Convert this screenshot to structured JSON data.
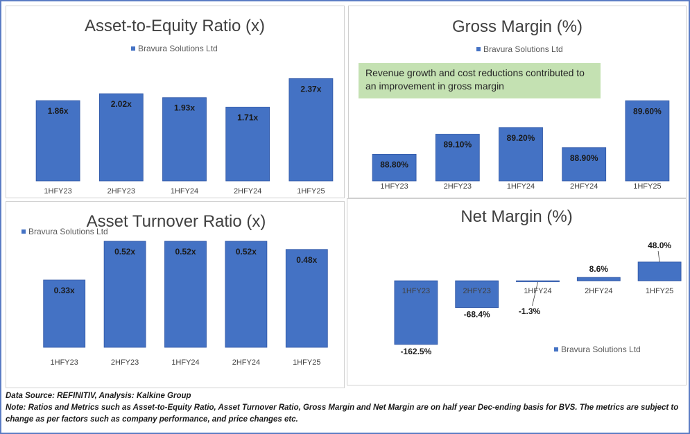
{
  "colors": {
    "bar": "#4472c4",
    "bar_edge": "#2f55a4",
    "callout_fill": "#c4e1b2",
    "frame": "#5b7cc4"
  },
  "legend_label": "Bravura Solutions Ltd",
  "chart_data": [
    {
      "type": "bar",
      "title": "Asset-to-Equity Ratio (x)",
      "categories": [
        "1HFY23",
        "2HFY23",
        "1HFY24",
        "2HFY24",
        "1HFY25"
      ],
      "series": [
        {
          "name": "Bravura Solutions Ltd",
          "values": [
            1.86,
            2.02,
            1.93,
            1.71,
            2.37
          ]
        }
      ],
      "data_labels": [
        "1.86x",
        "2.02x",
        "1.93x",
        "1.71x",
        "2.37x"
      ],
      "ylim": [
        0,
        2.6
      ],
      "legend_position": "top",
      "grid": false
    },
    {
      "type": "bar",
      "title": "Gross Margin (%)",
      "categories": [
        "1HFY23",
        "2HFY23",
        "1HFY24",
        "2HFY24",
        "1HFY25"
      ],
      "series": [
        {
          "name": "Bravura Solutions Ltd",
          "values": [
            88.8,
            89.1,
            89.2,
            88.9,
            89.6
          ]
        }
      ],
      "data_labels": [
        "88.80%",
        "89.10%",
        "89.20%",
        "88.90%",
        "89.60%"
      ],
      "ylim": [
        88.4,
        89.8
      ],
      "legend_position": "top",
      "grid": false,
      "annotation": "Revenue growth and cost reductions contributed to an improvement in gross margin"
    },
    {
      "type": "bar",
      "title": "Asset Turnover Ratio (x)",
      "categories": [
        "1HFY23",
        "2HFY23",
        "1HFY24",
        "2HFY24",
        "1HFY25"
      ],
      "series": [
        {
          "name": "Bravura Solutions Ltd",
          "values": [
            0.33,
            0.52,
            0.52,
            0.52,
            0.48
          ]
        }
      ],
      "data_labels": [
        "0.33x",
        "0.52x",
        "0.52x",
        "0.52x",
        "0.48x"
      ],
      "ylim": [
        0,
        0.52
      ],
      "legend_position": "top-left",
      "grid": false
    },
    {
      "type": "bar",
      "title": "Net Margin (%)",
      "categories": [
        "1HFY23",
        "2HFY23",
        "1HFY24",
        "2HFY24",
        "1HFY25"
      ],
      "series": [
        {
          "name": "Bravura Solutions Ltd",
          "values": [
            -162.5,
            -68.4,
            -1.3,
            8.6,
            48.0
          ]
        }
      ],
      "data_labels": [
        "-162.5%",
        "-68.4%",
        "-1.3%",
        "8.6%",
        "48.0%"
      ],
      "ylim": [
        -170,
        60
      ],
      "legend_position": "bottom-right",
      "grid": false
    }
  ],
  "footer": {
    "source": "Data Source: REFINITIV, Analysis: Kalkine Group",
    "note": "Note: Ratios and Metrics such as Asset-to-Equity Ratio, Asset Turnover Ratio, Gross Margin and Net Margin are on half year Dec-ending basis for BVS. The metrics are subject to change as per factors such as company performance, and price changes etc."
  }
}
